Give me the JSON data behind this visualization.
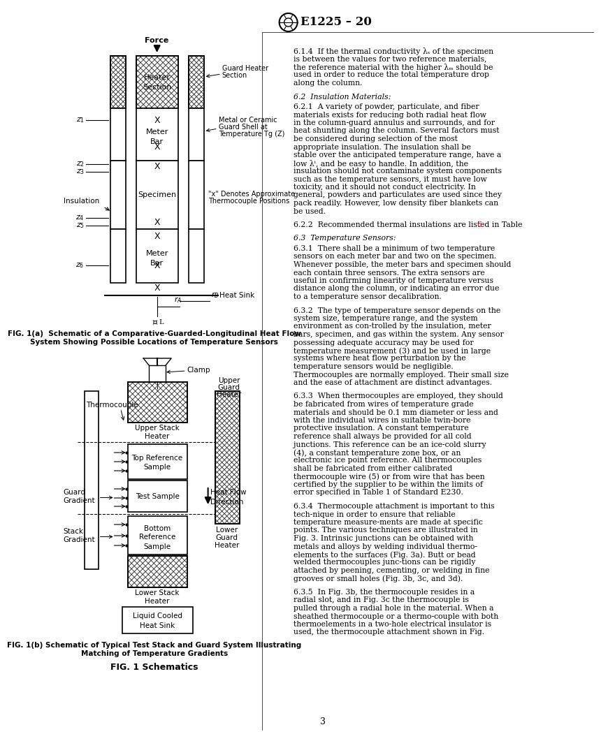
{
  "page_width": 7.78,
  "page_height": 10.41,
  "bg_color": "#ffffff",
  "header_text": "E1225 – 20",
  "footer_text": "3",
  "fig1a_caption_line1": "FIG. 1(a)  Schematic of a Comparative-Guarded-Longitudinal Heat Flow",
  "fig1a_caption_line2": "System Showing Possible Locations of Temperature Sensors",
  "fig1b_caption_line1": "FIG. 1(b) Schematic of Typical Test Stack and Guard System Illustrating",
  "fig1b_caption_line2": "Matching of Temperature Gradients",
  "fig_main_caption": "FIG. 1 Schematics",
  "rc_paragraphs": {
    "p614": "6.1.4  If the thermal conductivity λₛ of the specimen is between the values for two reference materials, the reference material with the higher λₘ should be used in order to reduce the total temperature drop along the column.",
    "h62": "6.2  Insulation Materials:",
    "p621": "6.2.1  A variety of powder, particulate, and fiber materials exists for reducing both radial heat flow in the column-guard annulus and surrounds, and for heat shunting along the column. Several factors must be considered during selection of the most appropriate insulation. The insulation shall be stable over the anticipated temperature range, have a low λⁱ, and be easy to handle. In addition, the insulation should not contaminate system components such as the temperature sensors, it must have low toxicity, and it should not conduct electricity. In general, powders and particulates are used since they pack readily. However, low density fiber blankets can be used.",
    "p622a": "6.2.2  Recommended thermal insulations are listed in Table ",
    "p622b": "6.",
    "h63": "6.3  Temperature Sensors:",
    "p631": "6.3.1  There shall be a minimum of two temperature sensors on each meter bar and two on the specimen. Whenever possible, the meter bars and specimen should each contain three sensors. The extra sensors are useful in confirming linearity of temperature versus distance along the column, or indicating an error due to a temperature sensor decalibration.",
    "p632": "6.3.2  The type of temperature sensor depends on the system size, temperature range, and the system environment as con­trolled by the insulation, meter bars, specimen, and gas within the system. Any sensor possessing adequate accuracy may be used for temperature measurement (3) and be used in large systems where heat flow perturbation by the temperature sensors would be negligible. Thermocouples are normally employed. Their small size and the ease of attachment are distinct advantages.",
    "p633": "6.3.3  When thermocouples are employed, they should be fabricated from wires of temperature grade materials and should be 0.1 mm diameter or less and with the individual wires in suitable twin-bore protective insulation. A constant temperature reference shall always be provided for all cold junctions. This reference can be an ice-cold slurry (4), a constant temperature zone box, or an electronic ice point reference. All thermocouples shall be fabricated from either calibrated thermocouple wire (5) or from wire that has been certified by the supplier to be within the limits of error specified in Table 1 of Standard E230.",
    "p634": "6.3.4  Thermocouple attachment is important to this tech­nique in order to ensure that reliable temperature measure­ments are made at specific points. The various techniques are illustrated in Fig. 3. Intrinsic junctions can be obtained with metals and alloys by welding individual thermo-elements to the surfaces (Fig. 3a). Butt or bead welded thermocouples junc­tions can be rigidly attached by peening, cementing, or welding in fine grooves or small holes (Fig. 3b, 3c, and 3d).",
    "p635": "6.3.5  In Fig. 3b, the thermocouple resides in a radial slot, and in Fig. 3c the thermocouple is pulled through a radial hole in the material. When a sheathed thermocouple or a thermo­couple with both thermoelements in a two-hole electrical insulator is used, the thermocouple attachment shown in Fig."
  }
}
